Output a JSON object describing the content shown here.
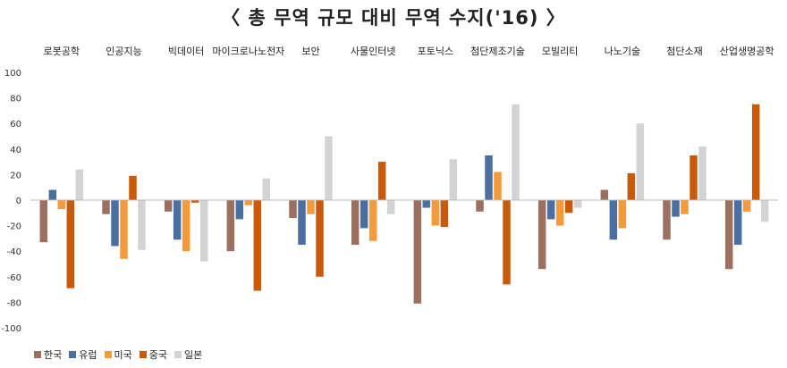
{
  "chart_data": {
    "type": "bar",
    "title": "〈 총 무역 규모 대비 무역 수지('16) 〉",
    "categories": [
      "로봇공학",
      "인공지능",
      "빅데이터",
      "마이크로나노전자",
      "보안",
      "사물인터넷",
      "포토닉스",
      "첨단제조기술",
      "모빌리티",
      "나노기술",
      "첨단소재",
      "산업생명공학"
    ],
    "ylim": [
      -100,
      100
    ],
    "yticks": [
      -100,
      -80,
      -60,
      -40,
      -20,
      0,
      20,
      40,
      60,
      80,
      100
    ],
    "grid": false,
    "legend": "bottom-left",
    "series": [
      {
        "name": "한국",
        "color": "#9B7060",
        "values": [
          -33,
          -11,
          -9,
          -40,
          -14,
          -35,
          -81,
          -9,
          -54,
          8,
          -31,
          -54
        ]
      },
      {
        "name": "유럽",
        "color": "#4A6FA0",
        "values": [
          8,
          -36,
          -31,
          -15,
          -35,
          -22,
          -6,
          35,
          -15,
          -31,
          -13,
          -35
        ]
      },
      {
        "name": "미국",
        "color": "#F39A3C",
        "values": [
          -7,
          -46,
          -40,
          -4,
          -11,
          -32,
          -20,
          22,
          -20,
          -22,
          -11,
          -9
        ]
      },
      {
        "name": "중국",
        "color": "#C85A0A",
        "values": [
          -69,
          19,
          -2,
          -71,
          -60,
          30,
          -21,
          -66,
          -10,
          21,
          35,
          75
        ]
      },
      {
        "name": "일본",
        "color": "#D3D3D3",
        "values": [
          24,
          -39,
          -48,
          17,
          50,
          -11,
          32,
          75,
          -6,
          60,
          42,
          -17
        ]
      }
    ]
  }
}
